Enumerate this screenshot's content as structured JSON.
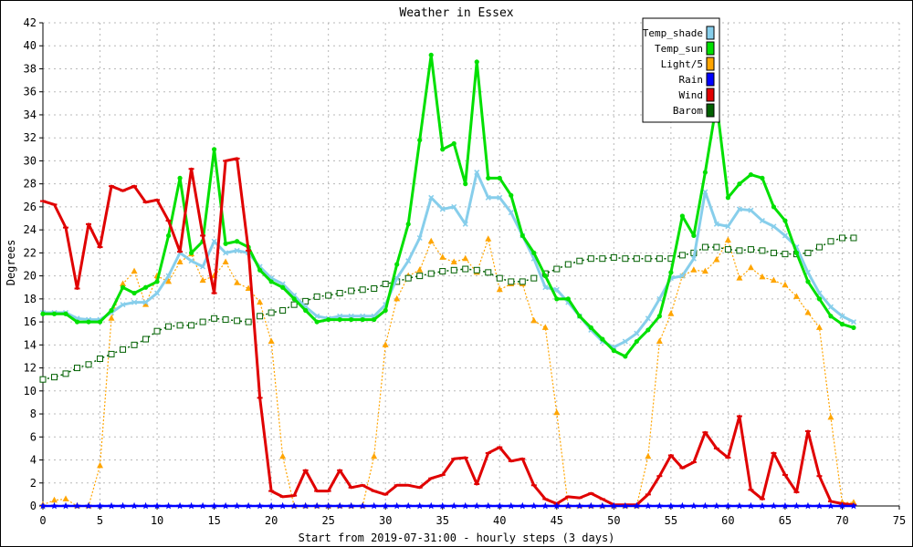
{
  "chart_data": {
    "type": "line",
    "title": "Weather in Essex",
    "xlabel": "Start from 2019-07-31:00 - hourly steps (3 days)",
    "ylabel": "Degrees",
    "xlim": [
      0,
      75
    ],
    "ylim": [
      0,
      42
    ],
    "x_ticks": [
      0,
      5,
      10,
      15,
      20,
      25,
      30,
      35,
      40,
      45,
      50,
      55,
      60,
      65,
      70,
      75
    ],
    "y_ticks": [
      0,
      2,
      4,
      6,
      8,
      10,
      12,
      14,
      16,
      18,
      20,
      22,
      24,
      26,
      28,
      30,
      32,
      34,
      36,
      38,
      40,
      42
    ],
    "grid": true,
    "legend_position": "top-right",
    "series": [
      {
        "name": "Temp_shade",
        "color": "#87ceeb",
        "marker": "x",
        "values": [
          16.8,
          16.8,
          16.8,
          16.3,
          16.2,
          16.2,
          16.8,
          17.5,
          17.7,
          17.7,
          18.5,
          20.0,
          22.0,
          21.3,
          20.8,
          23.0,
          22.0,
          22.2,
          22.0,
          20.8,
          19.8,
          19.3,
          18.3,
          17.3,
          16.5,
          16.3,
          16.5,
          16.5,
          16.5,
          16.5,
          17.5,
          19.8,
          21.3,
          23.3,
          26.8,
          25.8,
          26.0,
          24.5,
          29.0,
          26.8,
          26.8,
          25.5,
          23.5,
          21.5,
          19.0,
          18.8,
          17.7,
          16.5,
          15.3,
          14.3,
          13.8,
          14.3,
          15.0,
          16.3,
          18.0,
          19.8,
          20.0,
          21.5,
          27.3,
          24.5,
          24.3,
          25.8,
          25.7,
          24.8,
          24.3,
          23.5,
          22.5,
          20.3,
          18.5,
          17.3,
          16.5,
          16.0
        ]
      },
      {
        "name": "Temp_sun",
        "color": "#00e000",
        "marker": "circle",
        "values": [
          16.7,
          16.7,
          16.7,
          16.0,
          16.0,
          16.0,
          17.0,
          19.0,
          18.5,
          19.0,
          19.5,
          23.5,
          28.5,
          22.0,
          23.0,
          31.0,
          22.8,
          23.0,
          22.5,
          20.5,
          19.5,
          19.0,
          18.0,
          17.0,
          16.0,
          16.2,
          16.2,
          16.2,
          16.2,
          16.2,
          17.0,
          21.0,
          24.5,
          31.8,
          39.2,
          31.0,
          31.5,
          28.0,
          38.6,
          28.5,
          28.5,
          27.0,
          23.5,
          22.0,
          20.0,
          18.0,
          18.0,
          16.5,
          15.5,
          14.5,
          13.5,
          13.0,
          14.3,
          15.3,
          16.5,
          20.3,
          25.2,
          23.5,
          29.0,
          35.0,
          26.8,
          28.0,
          28.8,
          28.5,
          26.0,
          24.8,
          22.0,
          19.5,
          18.0,
          16.5,
          15.8,
          15.5
        ]
      },
      {
        "name": "Light/5",
        "color": "#ffa500",
        "marker": "triangle",
        "values": [
          0.1,
          0.5,
          0.6,
          0.0,
          0.0,
          3.5,
          16.3,
          19.3,
          20.4,
          17.5,
          20.0,
          19.5,
          21.2,
          21.9,
          19.6,
          20.0,
          21.2,
          19.4,
          18.9,
          17.7,
          14.3,
          4.3,
          0.0,
          0.0,
          0.0,
          0.0,
          0.0,
          0.0,
          0.0,
          4.3,
          14.0,
          18.0,
          20.0,
          20.5,
          23.0,
          21.6,
          21.2,
          21.5,
          20.3,
          23.2,
          18.8,
          19.3,
          19.3,
          16.1,
          15.5,
          8.1,
          0.0,
          0.0,
          0.0,
          0.0,
          0.0,
          0.0,
          0.0,
          4.3,
          14.3,
          16.7,
          20.0,
          20.5,
          20.4,
          21.4,
          23.1,
          19.8,
          20.7,
          19.9,
          19.6,
          19.2,
          18.2,
          16.8,
          15.5,
          7.7,
          0.3,
          0.3
        ]
      },
      {
        "name": "Rain",
        "color": "#0000ff",
        "marker": "star",
        "values": [
          0,
          0,
          0,
          0,
          0,
          0,
          0,
          0,
          0,
          0,
          0,
          0,
          0,
          0,
          0,
          0,
          0,
          0,
          0,
          0,
          0,
          0,
          0,
          0,
          0,
          0,
          0,
          0,
          0,
          0,
          0,
          0,
          0,
          0,
          0,
          0,
          0,
          0,
          0,
          0,
          0,
          0,
          0,
          0,
          0,
          0,
          0,
          0,
          0,
          0,
          0,
          0,
          0,
          0,
          0,
          0,
          0,
          0,
          0,
          0,
          0,
          0,
          0,
          0,
          0,
          0,
          0,
          0,
          0,
          0,
          0,
          0
        ]
      },
      {
        "name": "Wind",
        "color": "#e00000",
        "marker": "dash",
        "values": [
          26.5,
          26.2,
          24.2,
          18.9,
          24.5,
          22.5,
          27.8,
          27.4,
          27.8,
          26.4,
          26.6,
          24.8,
          22.1,
          29.3,
          23.5,
          18.5,
          30.0,
          30.2,
          22.2,
          9.4,
          1.3,
          0.8,
          0.9,
          3.1,
          1.3,
          1.3,
          3.1,
          1.6,
          1.8,
          1.3,
          1.0,
          1.8,
          1.8,
          1.6,
          2.4,
          2.7,
          4.1,
          4.2,
          1.9,
          4.6,
          5.1,
          3.9,
          4.1,
          1.8,
          0.6,
          0.2,
          0.8,
          0.7,
          1.1,
          0.6,
          0.1,
          0.1,
          0.1,
          1.0,
          2.6,
          4.4,
          3.3,
          3.8,
          6.4,
          5.0,
          4.2,
          7.8,
          1.4,
          0.6,
          4.6,
          2.7,
          1.2,
          6.5,
          2.6,
          0.4,
          0.2,
          0.1
        ]
      },
      {
        "name": "Barom",
        "color": "#006000",
        "marker": "square",
        "values": [
          11.0,
          11.2,
          11.5,
          12.0,
          12.3,
          12.8,
          13.2,
          13.6,
          14.0,
          14.5,
          15.2,
          15.6,
          15.7,
          15.7,
          16.0,
          16.3,
          16.2,
          16.1,
          16.0,
          16.5,
          16.8,
          17.0,
          17.5,
          17.8,
          18.2,
          18.3,
          18.5,
          18.7,
          18.8,
          18.9,
          19.3,
          19.5,
          19.8,
          20.0,
          20.2,
          20.4,
          20.5,
          20.6,
          20.5,
          20.3,
          19.8,
          19.5,
          19.5,
          19.8,
          20.2,
          20.6,
          21.0,
          21.3,
          21.5,
          21.5,
          21.6,
          21.5,
          21.5,
          21.5,
          21.5,
          21.5,
          21.8,
          22.0,
          22.5,
          22.5,
          22.3,
          22.2,
          22.3,
          22.2,
          22.0,
          21.9,
          21.9,
          22.0,
          22.5,
          23.0,
          23.3,
          23.3
        ]
      }
    ]
  }
}
